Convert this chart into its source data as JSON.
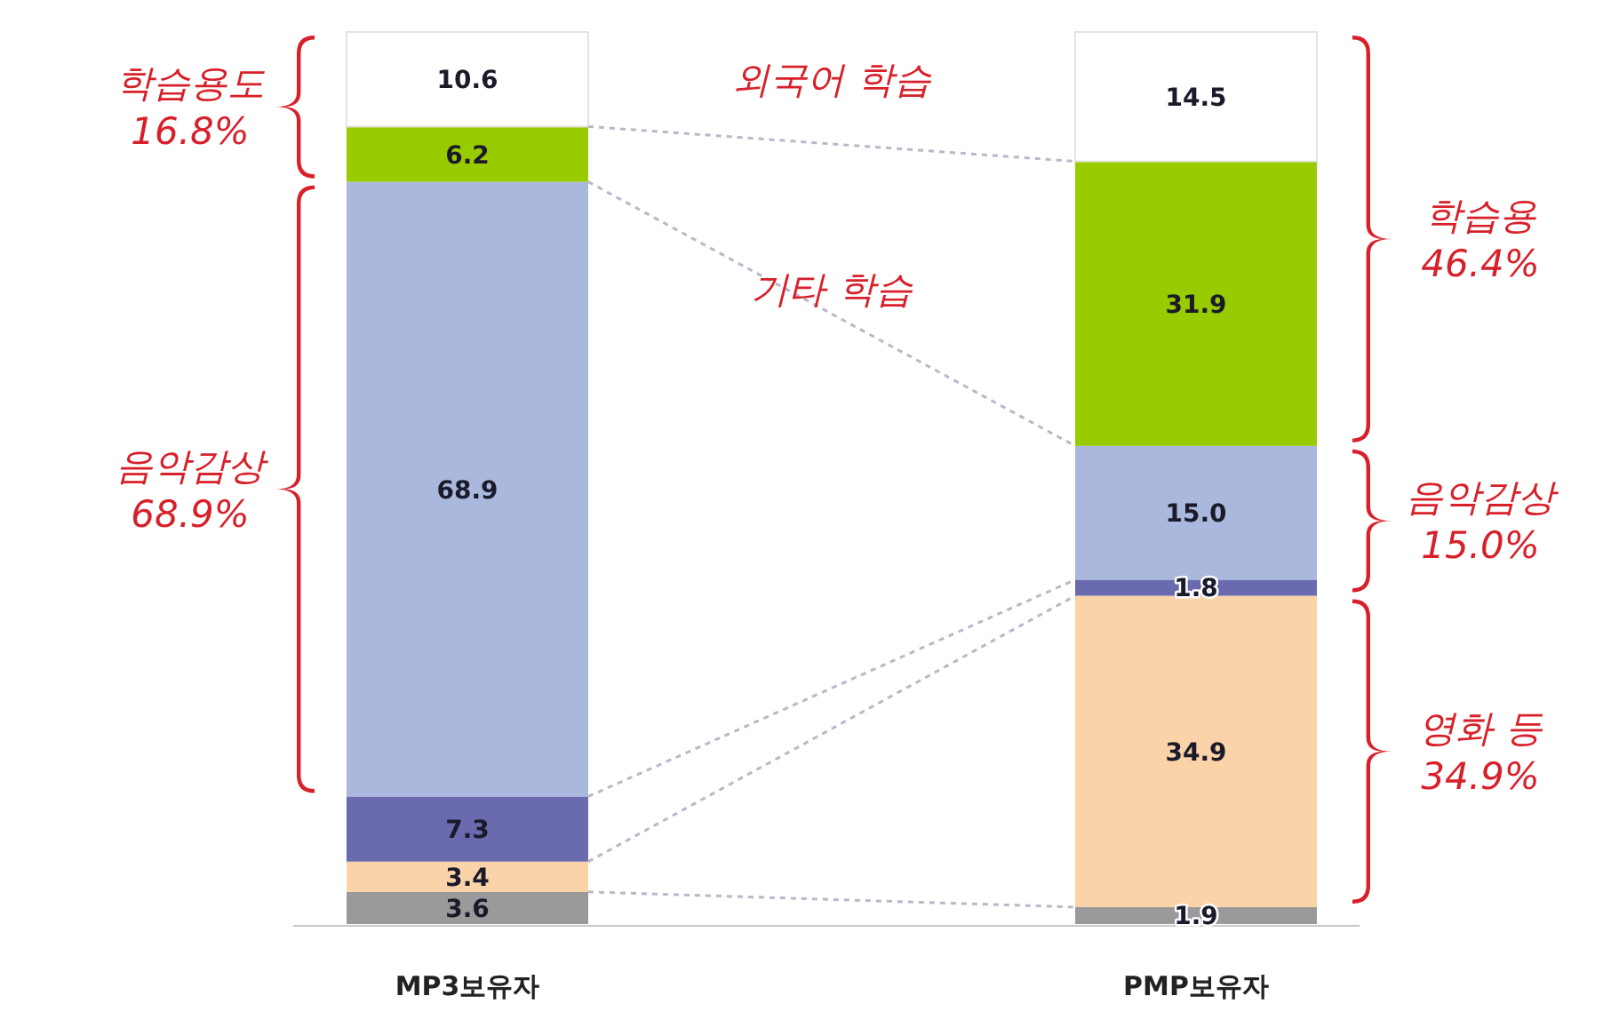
{
  "chart_data": {
    "type": "bar",
    "stacked": true,
    "categories": [
      "MP3보유자",
      "PMP보유자"
    ],
    "series": [
      {
        "color": "#9a9a9a",
        "values": [
          3.6,
          1.9
        ],
        "value_labels": [
          "3.6",
          "1.9"
        ]
      },
      {
        "color": "#fbd3a8",
        "values": [
          3.4,
          34.9
        ],
        "value_labels": [
          "3.4",
          "34.9"
        ]
      },
      {
        "color": "#6a6aae",
        "values": [
          7.3,
          1.8
        ],
        "value_labels": [
          "7.3",
          "1.8"
        ]
      },
      {
        "color": "#a9b8dc",
        "values": [
          68.9,
          15.0
        ],
        "value_labels": [
          "68.9",
          "15.0"
        ]
      },
      {
        "color": "#99cc00",
        "values": [
          6.2,
          31.9
        ],
        "value_labels": [
          "6.2",
          "31.9"
        ]
      },
      {
        "color": "#ffffff",
        "values": [
          10.6,
          14.5
        ],
        "value_labels": [
          "10.6",
          "14.5"
        ]
      }
    ],
    "annotations": [
      "학습용도\n16.8%",
      "음악감상\n68.9%",
      "외국어 학습",
      "기타 학습",
      "학습용\n46.4%",
      "음악감상\n15.0%",
      "영화 등\n34.9%"
    ]
  }
}
